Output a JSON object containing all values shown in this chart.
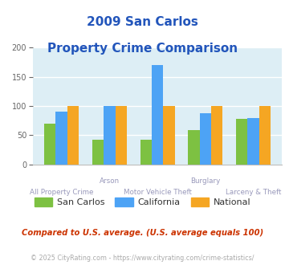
{
  "title_line1": "2009 San Carlos",
  "title_line2": "Property Crime Comparison",
  "title_color": "#2255bb",
  "groups": [
    {
      "label_top": "",
      "label_bottom": "All Property Crime",
      "san_carlos": 70,
      "california": 91,
      "national": 100
    },
    {
      "label_top": "Arson",
      "label_bottom": "Motor Vehicle Theft",
      "san_carlos": 42,
      "california": 100,
      "national": 100
    },
    {
      "label_top": "",
      "label_bottom": "",
      "san_carlos": 42,
      "california": 170,
      "national": 100
    },
    {
      "label_top": "Burglary",
      "label_bottom": "",
      "san_carlos": 59,
      "california": 87,
      "national": 100
    },
    {
      "label_top": "",
      "label_bottom": "Larceny & Theft",
      "san_carlos": 78,
      "california": 80,
      "national": 100
    }
  ],
  "colors": {
    "san_carlos": "#7dc142",
    "california": "#4da3f5",
    "national": "#f5a623"
  },
  "ylim": [
    0,
    200
  ],
  "yticks": [
    0,
    50,
    100,
    150,
    200
  ],
  "plot_bg": "#ddeef5",
  "grid_color": "#c0d8e0",
  "legend_labels": [
    "San Carlos",
    "California",
    "National"
  ],
  "footnote1": "Compared to U.S. average. (U.S. average equals 100)",
  "footnote2": "© 2025 CityRating.com - https://www.cityrating.com/crime-statistics/",
  "footnote1_color": "#cc3300",
  "footnote2_color": "#aaaaaa",
  "top_label_color": "#9999bb",
  "bottom_label_color": "#9999bb"
}
